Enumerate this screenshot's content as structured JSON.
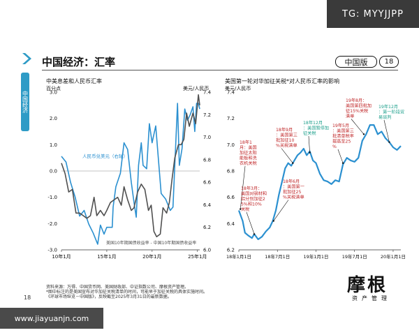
{
  "watermarks": {
    "top": "TG: MYYJJPP",
    "bottom": "www.jiayuanjn.com"
  },
  "sidebar": {
    "label": "中国经济"
  },
  "header": {
    "title": "中国经济：汇率",
    "edition": "中国版",
    "page": "18"
  },
  "colors": {
    "blue": "#2b90d0",
    "gray": "#505050",
    "red": "#c0282a",
    "green": "#1ea08c"
  },
  "footer": {
    "source": "资料来源：万得、中国货币网、美国财政部、中证指数公司、摩根资产管理。",
    "note1": "*图中标注的是美国宣布对华加征关税清单的时间，可能早于加征关税的具体实施时间。",
    "note2": "《环球市场纵览－中国版》，反映截至2025年3月31日的最新数据。",
    "slide_number": "18"
  },
  "brand": {
    "logo": "摩根",
    "sub": "资产管理"
  },
  "chart_data": [
    {
      "type": "line",
      "title": "中美息差和人民币汇率",
      "y_left_unit": "百分点",
      "y_right_unit": "美元/人民币",
      "ylim_left": [
        -3.0,
        3.0
      ],
      "ylim_right": [
        6.0,
        7.4
      ],
      "yticks_left": [
        "3.0",
        "2.0",
        "1.0",
        "0.0",
        "-1.0",
        "-2.0",
        "-3.0"
      ],
      "yticks_right": [
        "7.4",
        "7.2",
        "7.0",
        "6.8",
        "6.6",
        "6.4",
        "6.2",
        "6.0"
      ],
      "x_range": [
        2010,
        2025.25
      ],
      "xticks": [
        {
          "x": 2010,
          "label": "10年1月"
        },
        {
          "x": 2015,
          "label": "15年1月"
        },
        {
          "x": 2020,
          "label": "20年1月"
        },
        {
          "x": 2025,
          "label": "25年1月"
        }
      ],
      "grid": false,
      "series": [
        {
          "name": "人民币兑美元（右轴）",
          "axis": "right",
          "color": "#2b90d0",
          "points": [
            [
              2010,
              6.83
            ],
            [
              2010.5,
              6.78
            ],
            [
              2011,
              6.6
            ],
            [
              2011.5,
              6.47
            ],
            [
              2012,
              6.3
            ],
            [
              2012.5,
              6.35
            ],
            [
              2013,
              6.23
            ],
            [
              2013.5,
              6.15
            ],
            [
              2014,
              6.05
            ],
            [
              2014.3,
              6.22
            ],
            [
              2014.7,
              6.14
            ],
            [
              2015,
              6.2
            ],
            [
              2015.6,
              6.2
            ],
            [
              2015.7,
              6.38
            ],
            [
              2016,
              6.56
            ],
            [
              2016.5,
              6.68
            ],
            [
              2016.9,
              6.95
            ],
            [
              2017.3,
              6.89
            ],
            [
              2017.7,
              6.6
            ],
            [
              2018,
              6.42
            ],
            [
              2018.25,
              6.29
            ],
            [
              2018.5,
              6.75
            ],
            [
              2018.8,
              6.95
            ],
            [
              2019,
              6.75
            ],
            [
              2019.4,
              6.72
            ],
            [
              2019.7,
              7.12
            ],
            [
              2020,
              6.95
            ],
            [
              2020.4,
              7.1
            ],
            [
              2020.7,
              6.8
            ],
            [
              2021,
              6.5
            ],
            [
              2021.5,
              6.45
            ],
            [
              2022,
              6.35
            ],
            [
              2022.3,
              6.38
            ],
            [
              2022.5,
              6.75
            ],
            [
              2022.8,
              7.3
            ],
            [
              2023,
              6.75
            ],
            [
              2023.3,
              6.9
            ],
            [
              2023.6,
              7.25
            ],
            [
              2023.9,
              7.15
            ],
            [
              2024.2,
              7.2
            ],
            [
              2024.5,
              7.27
            ],
            [
              2024.7,
              7.05
            ],
            [
              2024.9,
              7.3
            ],
            [
              2025.1,
              7.3
            ],
            [
              2025.25,
              7.25
            ]
          ]
        },
        {
          "name": "美国10年期国债收益率－中国10年期国债收益率",
          "axis": "left",
          "color": "#505050",
          "points": [
            [
              2010,
              0.3
            ],
            [
              2010.4,
              -0.1
            ],
            [
              2010.8,
              -0.8
            ],
            [
              2011.2,
              -0.7
            ],
            [
              2011.6,
              -1.6
            ],
            [
              2012,
              -1.6
            ],
            [
              2012.4,
              -1.7
            ],
            [
              2012.8,
              -1.8
            ],
            [
              2013.2,
              -1.7
            ],
            [
              2013.6,
              -1.0
            ],
            [
              2013.9,
              -1.7
            ],
            [
              2014.3,
              -1.5
            ],
            [
              2014.7,
              -1.7
            ],
            [
              2015,
              -1.5
            ],
            [
              2015.4,
              -1.2
            ],
            [
              2015.8,
              -1.1
            ],
            [
              2016.2,
              -1.0
            ],
            [
              2016.6,
              -1.3
            ],
            [
              2016.9,
              -0.6
            ],
            [
              2017.3,
              -1.1
            ],
            [
              2017.7,
              -1.5
            ],
            [
              2018,
              -1.4
            ],
            [
              2018.4,
              -0.8
            ],
            [
              2018.8,
              -0.5
            ],
            [
              2019.2,
              -0.7
            ],
            [
              2019.6,
              -1.5
            ],
            [
              2019.9,
              -1.3
            ],
            [
              2020.2,
              -2.3
            ],
            [
              2020.5,
              -2.5
            ],
            [
              2020.9,
              -2.4
            ],
            [
              2021.2,
              -1.4
            ],
            [
              2021.6,
              -1.6
            ],
            [
              2021.9,
              -1.2
            ],
            [
              2022.2,
              -0.3
            ],
            [
              2022.5,
              0.5
            ],
            [
              2022.9,
              1.0
            ],
            [
              2023.2,
              1.0
            ],
            [
              2023.5,
              1.2
            ],
            [
              2023.8,
              2.2
            ],
            [
              2024.1,
              1.7
            ],
            [
              2024.5,
              2.2
            ],
            [
              2024.8,
              1.8
            ],
            [
              2025.1,
              2.9
            ],
            [
              2025.25,
              2.5
            ]
          ]
        }
      ],
      "annotations": [
        {
          "text": "人民币兑美元（右轴）",
          "color": "#2b90d0"
        },
        {
          "text": "美国10年期国债收益率 - 中国10年期国债收益率",
          "color": "#505050"
        }
      ]
    },
    {
      "type": "line",
      "title": "美国第一轮对华加征关税*对人民币汇率的影响",
      "y_unit": "美元/人民币",
      "ylim": [
        6.2,
        7.4
      ],
      "yticks": [
        "7.4",
        "7.2",
        "7.0",
        "6.8",
        "6.6",
        "6.4",
        "6.2"
      ],
      "x_range": [
        2018.0,
        2020.1
      ],
      "xticks": [
        {
          "x": 2018.0,
          "label": "18年1月1日"
        },
        {
          "x": 2018.5,
          "label": "18年7月1日"
        },
        {
          "x": 2019.0,
          "label": "19年1月1日"
        },
        {
          "x": 2019.5,
          "label": "19年7月1日"
        },
        {
          "x": 2020.0,
          "label": "20年1月1日"
        }
      ],
      "grid": false,
      "series": [
        {
          "name": "美元/人民币",
          "color": "#2b90d0",
          "points": [
            [
              2018.0,
              6.5
            ],
            [
              2018.05,
              6.42
            ],
            [
              2018.08,
              6.33
            ],
            [
              2018.12,
              6.31
            ],
            [
              2018.17,
              6.29
            ],
            [
              2018.2,
              6.32
            ],
            [
              2018.25,
              6.28
            ],
            [
              2018.3,
              6.3
            ],
            [
              2018.35,
              6.34
            ],
            [
              2018.4,
              6.37
            ],
            [
              2018.44,
              6.42
            ],
            [
              2018.48,
              6.5
            ],
            [
              2018.52,
              6.62
            ],
            [
              2018.56,
              6.72
            ],
            [
              2018.6,
              6.82
            ],
            [
              2018.64,
              6.86
            ],
            [
              2018.68,
              6.84
            ],
            [
              2018.72,
              6.88
            ],
            [
              2018.76,
              6.92
            ],
            [
              2018.8,
              6.94
            ],
            [
              2018.84,
              6.97
            ],
            [
              2018.88,
              6.92
            ],
            [
              2018.92,
              6.95
            ],
            [
              2018.96,
              6.88
            ],
            [
              2019.0,
              6.86
            ],
            [
              2019.05,
              6.78
            ],
            [
              2019.1,
              6.73
            ],
            [
              2019.15,
              6.72
            ],
            [
              2019.2,
              6.7
            ],
            [
              2019.25,
              6.73
            ],
            [
              2019.3,
              6.72
            ],
            [
              2019.35,
              6.85
            ],
            [
              2019.4,
              6.9
            ],
            [
              2019.45,
              6.88
            ],
            [
              2019.5,
              6.87
            ],
            [
              2019.55,
              6.9
            ],
            [
              2019.6,
              7.03
            ],
            [
              2019.65,
              7.08
            ],
            [
              2019.7,
              7.15
            ],
            [
              2019.75,
              7.15
            ],
            [
              2019.8,
              7.08
            ],
            [
              2019.85,
              7.1
            ],
            [
              2019.9,
              7.05
            ],
            [
              2019.95,
              7.02
            ],
            [
              2020.0,
              6.98
            ],
            [
              2020.05,
              6.96
            ],
            [
              2020.1,
              6.99
            ]
          ]
        }
      ],
      "annotations": [
        {
          "text": "18年1月：美国加征太阳能板和洗衣机关税",
          "x": 2018.02,
          "y": 6.51,
          "color": "#c0282a"
        },
        {
          "text": "18年3月：美国对钢材和铝分别加征25%和10%关税",
          "x": 2018.2,
          "y": 6.32,
          "color": "#c0282a"
        },
        {
          "text": "18年6月：美国第一批加征25%关税清单",
          "x": 2018.45,
          "y": 6.42,
          "color": "#c0282a"
        },
        {
          "text": "18年9月：美国第三批加征10%关税清单",
          "x": 2018.7,
          "y": 6.86,
          "color": "#c0282a"
        },
        {
          "text": "18年12月：美国暂停加征关税",
          "x": 2018.92,
          "y": 6.94,
          "color": "#1ea08c"
        },
        {
          "text": "19年5月：美国第三批清单税率提高至25%",
          "x": 2019.35,
          "y": 6.86,
          "color": "#c0282a"
        },
        {
          "text": "19年8月：美国第四批加征15%关税清单",
          "x": 2019.62,
          "y": 7.08,
          "color": "#c0282a"
        },
        {
          "text": "19年12月：第一阶段贸易谈判",
          "x": 2019.95,
          "y": 7.02,
          "color": "#1ea08c"
        }
      ]
    }
  ]
}
